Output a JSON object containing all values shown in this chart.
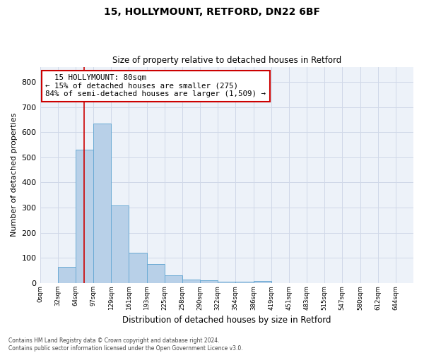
{
  "title_line1": "15, HOLLYMOUNT, RETFORD, DN22 6BF",
  "title_line2": "Size of property relative to detached houses in Retford",
  "xlabel": "Distribution of detached houses by size in Retford",
  "ylabel": "Number of detached properties",
  "bar_labels": [
    "0sqm",
    "32sqm",
    "64sqm",
    "97sqm",
    "129sqm",
    "161sqm",
    "193sqm",
    "225sqm",
    "258sqm",
    "290sqm",
    "322sqm",
    "354sqm",
    "386sqm",
    "419sqm",
    "451sqm",
    "483sqm",
    "515sqm",
    "547sqm",
    "580sqm",
    "612sqm",
    "644sqm"
  ],
  "bar_values": [
    0,
    65,
    530,
    635,
    310,
    120,
    75,
    30,
    15,
    10,
    5,
    7,
    8,
    0,
    0,
    0,
    0,
    0,
    0,
    0,
    0
  ],
  "bar_color": "#b8d0e8",
  "bar_edgecolor": "#6aaad4",
  "bar_linewidth": 0.7,
  "vline_x": 80,
  "vline_color": "#cc0000",
  "vline_linewidth": 1.2,
  "annotation_text": "  15 HOLLYMOUNT: 80sqm\n← 15% of detached houses are smaller (275)\n84% of semi-detached houses are larger (1,509) →",
  "annotation_box_edgecolor": "#cc0000",
  "annotation_box_facecolor": "#ffffff",
  "ylim": [
    0,
    860
  ],
  "yticks": [
    0,
    100,
    200,
    300,
    400,
    500,
    600,
    700,
    800
  ],
  "grid_color": "#d0d8e8",
  "bg_color": "#edf2f9",
  "footnote": "Contains HM Land Registry data © Crown copyright and database right 2024.\nContains public sector information licensed under the Open Government Licence v3.0.",
  "bin_width": 32,
  "fig_width": 6.0,
  "fig_height": 5.0,
  "dpi": 100
}
